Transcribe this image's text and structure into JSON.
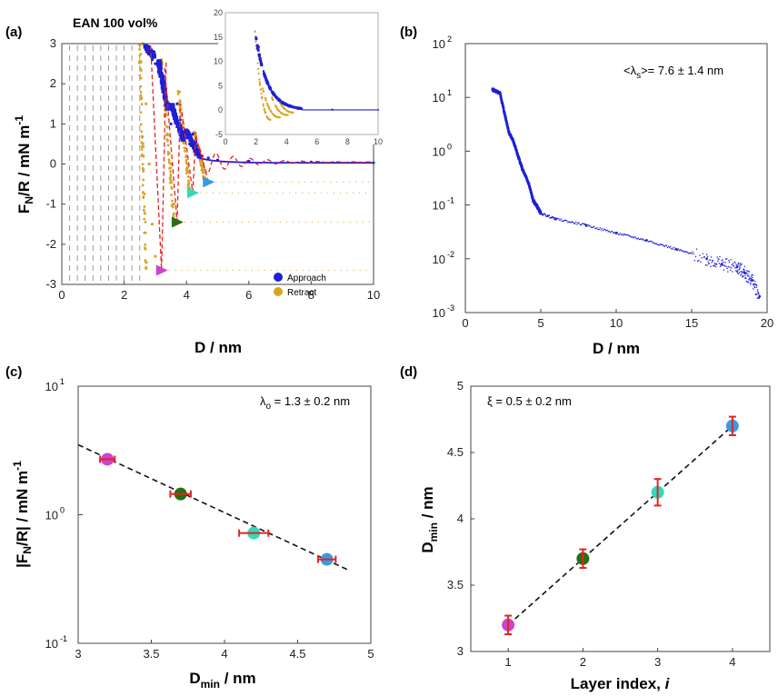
{
  "chart_data": [
    {
      "panel": "(a)",
      "type": "scatter",
      "title": "EAN 100 vol%",
      "xlabel": "D / nm",
      "ylabel_main": "F",
      "ylabel_sub": "N",
      "ylabel_rest": "/R / mN m",
      "ylabel_sup": "-1",
      "xlim": [
        0,
        10
      ],
      "ylim": [
        -3,
        3
      ],
      "xticks": [
        "0",
        "2",
        "4",
        "6",
        "8",
        "10"
      ],
      "yticks": [
        "-3",
        "-2",
        "-1",
        "0",
        "1",
        "2",
        "3"
      ],
      "legend_position": "bottom-right",
      "legend": [
        "Approach",
        "Retract"
      ],
      "colors": {
        "approach": "#1f1fd6",
        "retract": "#d9a521",
        "jump": "#e52222"
      },
      "series": [
        {
          "name": "Approach",
          "x": [
            10,
            8,
            6,
            5,
            4.7,
            4.5,
            4.4,
            4.3,
            4.2,
            4.1,
            3.9,
            3.8,
            3.7,
            3.6,
            3.5,
            3.4,
            3.2,
            3.1,
            3.0,
            2.9,
            2.8,
            2.7
          ],
          "y": [
            0.03,
            0.05,
            0.07,
            0.1,
            0.15,
            0.2,
            0.3,
            0.55,
            0.75,
            0.5,
            0.6,
            1.1,
            1.5,
            1.2,
            1.0,
            1.4,
            2.0,
            2.3,
            2.5,
            2.6,
            2.8,
            2.95
          ]
        },
        {
          "name": "Retract",
          "x": [
            2.6,
            2.7,
            2.8,
            2.9,
            3.0,
            3.1,
            3.3,
            3.5,
            3.6,
            3.7,
            3.9,
            4.0,
            4.1,
            4.2,
            4.4,
            4.5,
            4.6
          ],
          "y": [
            3.0,
            1.5,
            0.0,
            -1.5,
            -2.3,
            -2.65,
            1.2,
            0.0,
            -1.0,
            -1.45,
            1.0,
            0.2,
            -0.7,
            0.6,
            0.4,
            0.0,
            -0.45
          ]
        }
      ],
      "minima_markers": [
        {
          "x": 3.2,
          "y": -2.65,
          "color": "#cc44cc"
        },
        {
          "x": 3.7,
          "y": -1.45,
          "color": "#2a6e12"
        },
        {
          "x": 4.2,
          "y": -0.72,
          "color": "#33d9b8"
        },
        {
          "x": 4.7,
          "y": -0.45,
          "color": "#3a9be0"
        }
      ],
      "inset": {
        "xlim": [
          0,
          10
        ],
        "ylim": [
          -5,
          20
        ],
        "xticks": [
          "0",
          "2",
          "4",
          "6",
          "8",
          "10"
        ],
        "yticks": [
          "-5",
          "0",
          "5",
          "10",
          "15",
          "20"
        ],
        "series": [
          {
            "name": "Approach",
            "x": [
              2.0,
              2.2,
              2.5,
              3.0,
              3.5,
              4.0,
              5,
              7,
              10
            ],
            "y": [
              15,
              13,
              8,
              4,
              2,
              1,
              0.3,
              0.1,
              0.05
            ]
          },
          {
            "name": "Retract",
            "x": [
              1.9,
              2.0,
              2.2,
              2.6,
              3.0,
              3.5,
              4.0,
              4.5
            ],
            "y": [
              18,
              10,
              4,
              0,
              -1.5,
              -1,
              -0.5,
              0
            ]
          }
        ]
      }
    },
    {
      "panel": "(b)",
      "type": "scatter",
      "scale": "log-y",
      "xlabel": "D / nm",
      "xlim": [
        0,
        20
      ],
      "ylim": [
        0.001,
        100
      ],
      "xticks": [
        "0",
        "5",
        "10",
        "15",
        "20"
      ],
      "ytick_mantissa": [
        "10",
        "10",
        "10",
        "10",
        "10",
        "10"
      ],
      "ytick_exp": [
        "-3",
        "-2",
        "-1",
        "0",
        "1",
        "2"
      ],
      "annotation": "<λ",
      "annotation_sub": "s",
      "annotation_rest": ">= 7.6 ± 1.4 nm",
      "color": "#1f1fd6",
      "series": [
        {
          "name": "",
          "x": [
            1.8,
            2.0,
            2.3,
            2.6,
            2.9,
            3.2,
            3.5,
            3.8,
            4.2,
            4.5,
            4.8,
            5.0,
            6,
            8,
            10,
            12,
            14,
            16,
            17,
            18,
            18.5,
            19,
            19.5
          ],
          "y": [
            14,
            13,
            12,
            5,
            2.2,
            1.5,
            0.8,
            0.45,
            0.25,
            0.12,
            0.09,
            0.07,
            0.055,
            0.042,
            0.03,
            0.022,
            0.015,
            0.01,
            0.008,
            0.007,
            0.0055,
            0.004,
            0.002
          ]
        }
      ]
    },
    {
      "panel": "(c)",
      "type": "scatter",
      "scale": "log-y",
      "xlabel_main": "D",
      "xlabel_sub": "min",
      "xlabel_rest": " / nm",
      "ylabel": "|F",
      "ylabel_sub": "N",
      "ylabel_rest": "/R| / mN m",
      "ylabel_sup": "-1",
      "xlim": [
        3,
        5
      ],
      "ylim": [
        0.1,
        10
      ],
      "xticks": [
        "3",
        "3.5",
        "4",
        "4.5",
        "5"
      ],
      "ytick_mantissa": [
        "10",
        "10",
        "10"
      ],
      "ytick_exp": [
        "-1",
        "0",
        "1"
      ],
      "annotation": "λ",
      "annotation_sub": "o",
      "annotation_rest": " = 1.3 ± 0.2 nm",
      "points": [
        {
          "x": 3.2,
          "y": 2.7,
          "xerr": 0.05,
          "color": "#cc44cc"
        },
        {
          "x": 3.7,
          "y": 1.45,
          "xerr": 0.07,
          "color": "#2a6e12"
        },
        {
          "x": 4.2,
          "y": 0.72,
          "xerr": 0.1,
          "color": "#33d9b8"
        },
        {
          "x": 4.7,
          "y": 0.45,
          "xerr": 0.06,
          "color": "#3a9be0"
        }
      ],
      "fit_line": {
        "x": [
          3.0,
          4.85
        ],
        "y": [
          3.5,
          0.37
        ]
      }
    },
    {
      "panel": "(d)",
      "type": "scatter",
      "xlabel": "Layer index,  ",
      "xlabel_italic": "i",
      "ylabel_main": "D",
      "ylabel_sub": "min",
      "ylabel_rest": " / nm",
      "xlim": [
        0.5,
        4.5
      ],
      "ylim": [
        3,
        5
      ],
      "xticks": [
        "1",
        "2",
        "3",
        "4"
      ],
      "yticks": [
        "3",
        "3.5",
        "4",
        "4.5",
        "5"
      ],
      "annotation": "ξ = 0.5 ± 0.2 nm",
      "points": [
        {
          "x": 1,
          "y": 3.2,
          "yerr": 0.07,
          "color": "#cc44cc"
        },
        {
          "x": 2,
          "y": 3.7,
          "yerr": 0.07,
          "color": "#2a6e12"
        },
        {
          "x": 3,
          "y": 4.2,
          "yerr": 0.1,
          "color": "#33d9b8"
        },
        {
          "x": 4,
          "y": 4.7,
          "yerr": 0.07,
          "color": "#3a9be0"
        }
      ],
      "fit_line": {
        "x": [
          1,
          4
        ],
        "y": [
          3.2,
          4.7
        ]
      }
    }
  ],
  "err_color": "#e52222"
}
